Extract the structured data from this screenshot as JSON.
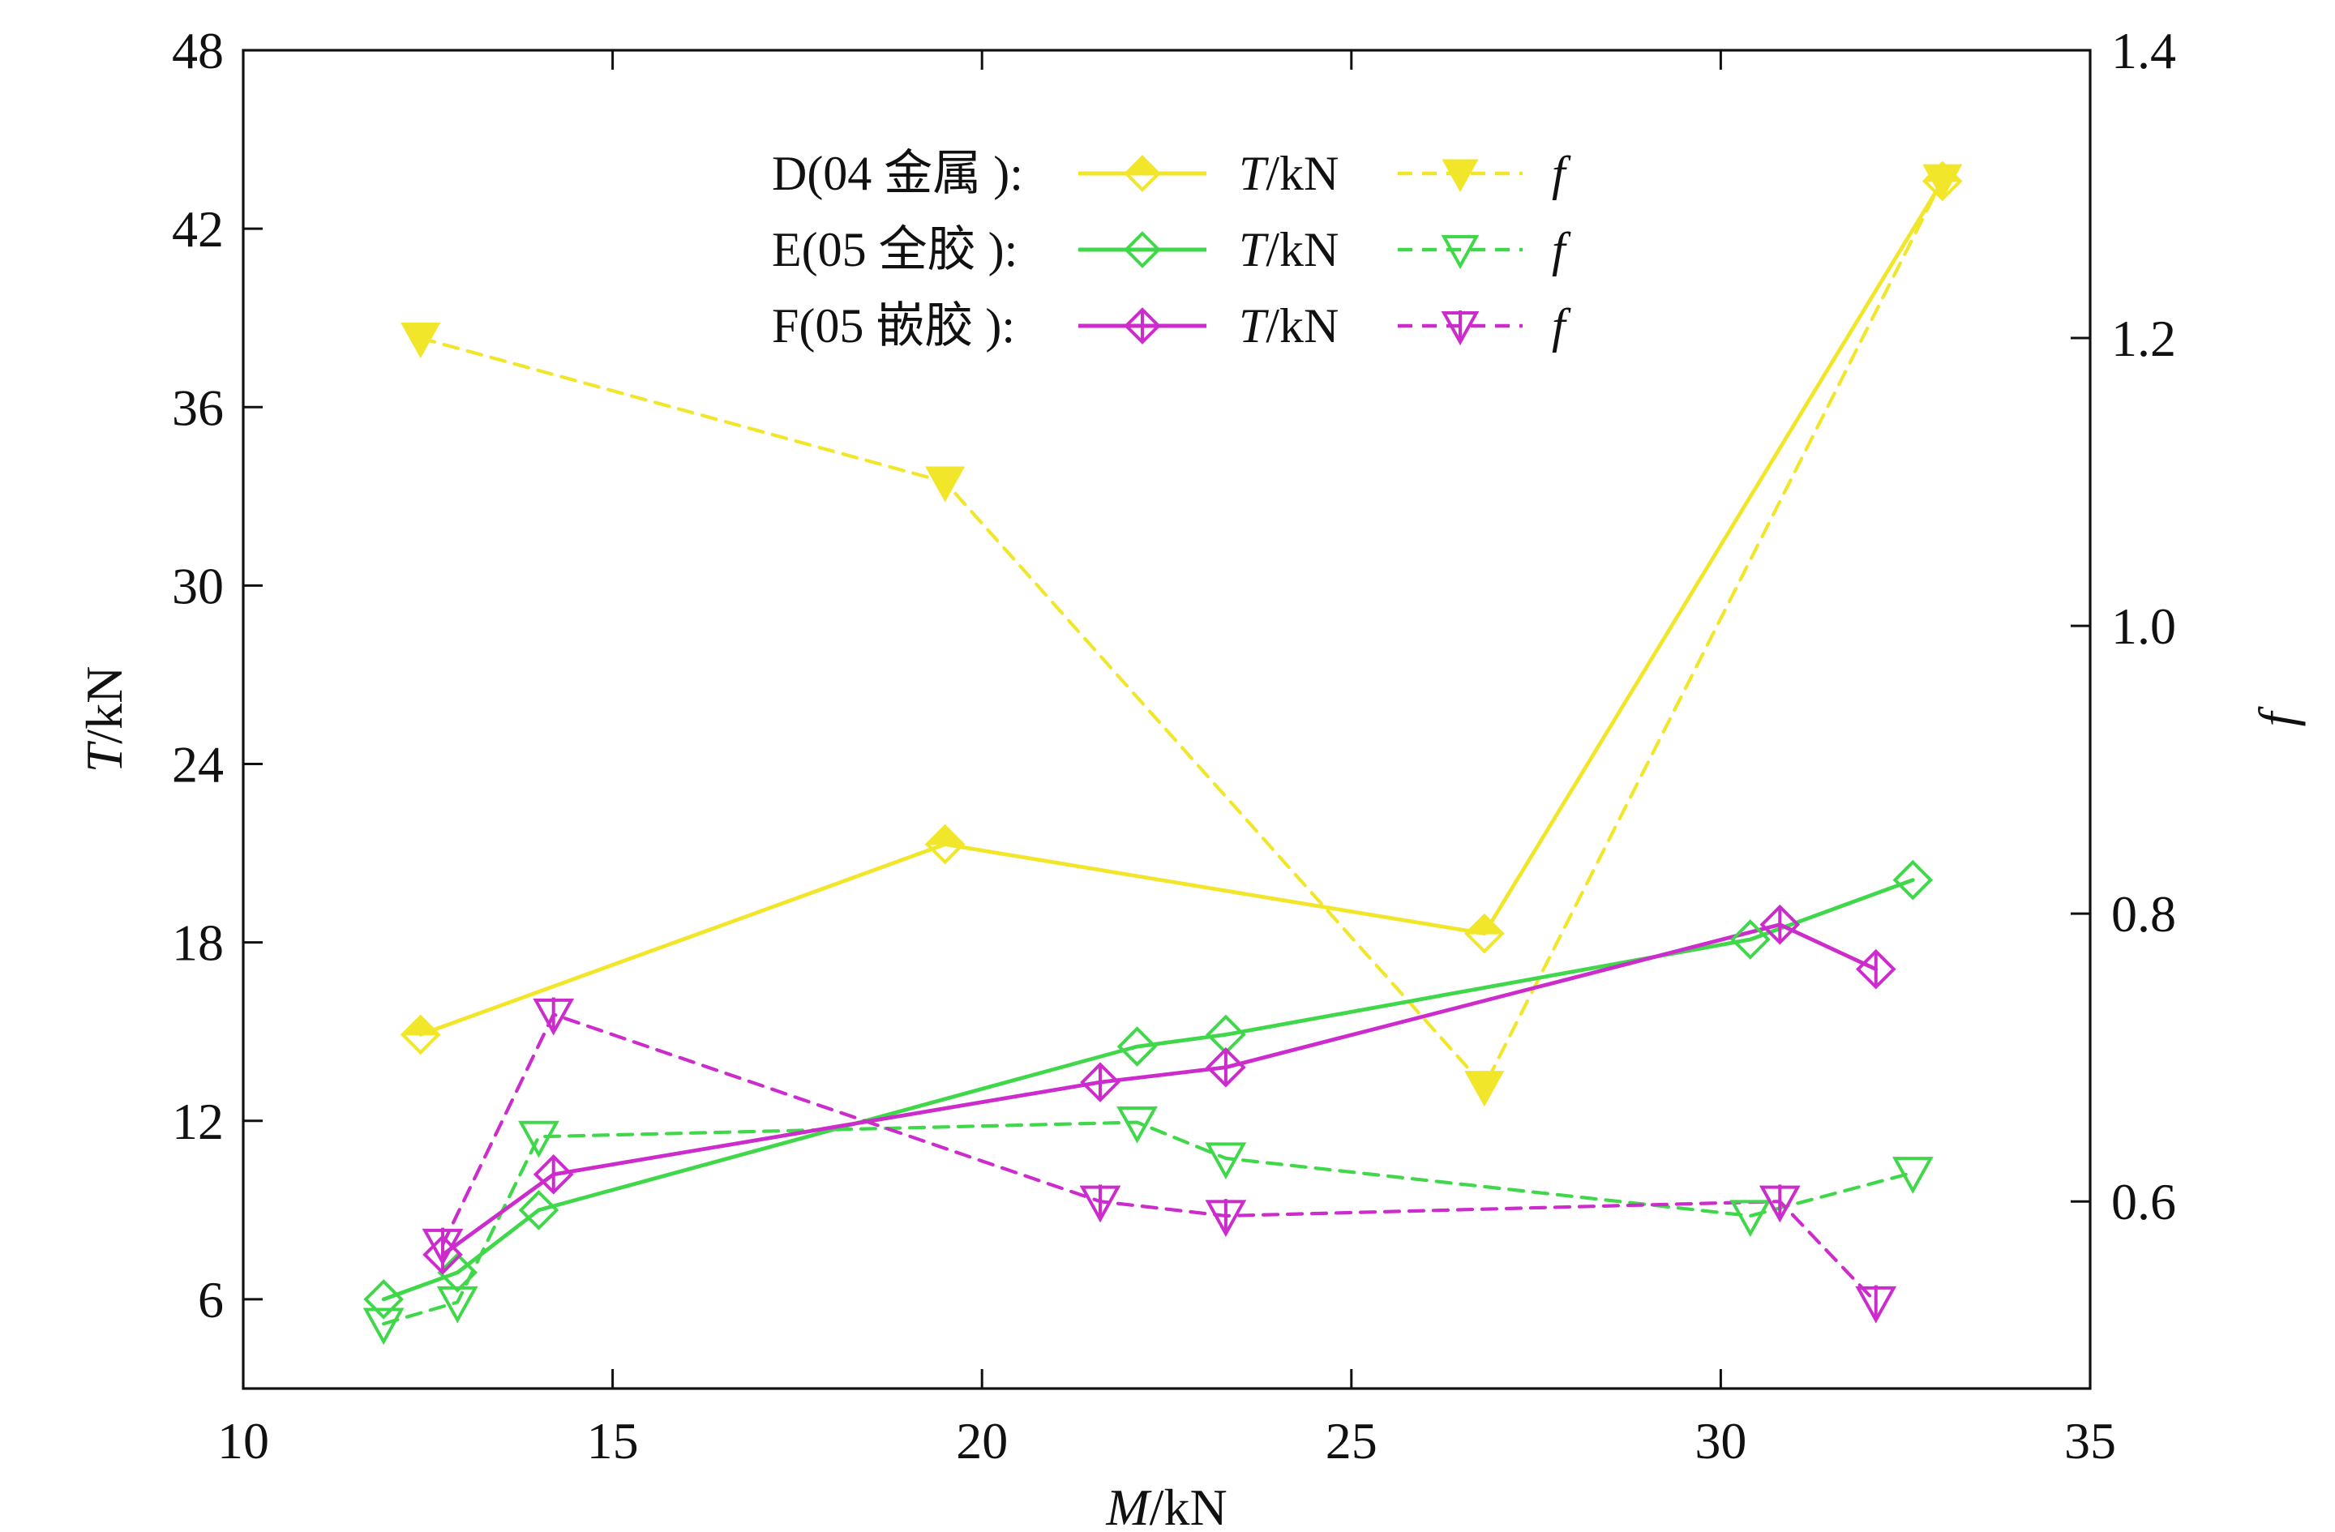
{
  "chart_data": {
    "type": "line",
    "x_label": {
      "italic": "M",
      "rest": "/kN"
    },
    "y_label_left": {
      "italic": "T",
      "rest": "/kN"
    },
    "y_label_right": {
      "italic": "f",
      "rest": ""
    },
    "xlim": [
      10,
      35
    ],
    "ylim_left": [
      3,
      48
    ],
    "ylim_right": [
      0.47,
      1.4
    ],
    "x_ticks": [
      "10",
      "15",
      "20",
      "25",
      "30",
      "35"
    ],
    "y_ticks_left": [
      "6",
      "12",
      "18",
      "24",
      "30",
      "36",
      "42",
      "48"
    ],
    "y_ticks_right": [
      "0.6",
      "0.8",
      "1.0",
      "1.2",
      "1.4"
    ],
    "legend_rows": [
      {
        "label": "D(04 金属 ):",
        "t_unit": "T/kN",
        "f_label": "f",
        "color": "#f2e62b"
      },
      {
        "label": "E(05 全胶 ):",
        "t_unit": "T/kN",
        "f_label": "f",
        "color": "#40d84a"
      },
      {
        "label": "F(05 嵌胶 ):",
        "t_unit": "T/kN",
        "f_label": "f",
        "color": "#cc2ccc"
      }
    ],
    "series": [
      {
        "name": "D(04 金属 ) T/kN",
        "axis": "left",
        "group": "D",
        "style": "solid",
        "marker": "diamond-half",
        "color": "#f2e62b",
        "x": [
          12.4,
          19.5,
          26.8,
          33.0
        ],
        "y": [
          14.9,
          21.3,
          18.3,
          43.6
        ]
      },
      {
        "name": "D(04 金属 ) f",
        "axis": "right",
        "group": "D",
        "style": "dashed",
        "marker": "triangle-down-filled",
        "color": "#f2e62b",
        "x": [
          12.4,
          19.5,
          26.8,
          33.0
        ],
        "y": [
          1.2,
          1.1,
          0.68,
          1.31
        ]
      },
      {
        "name": "E(05 全胶 ) T/kN",
        "axis": "left",
        "group": "E",
        "style": "solid",
        "marker": "diamond-open",
        "color": "#40d84a",
        "x": [
          11.9,
          12.9,
          14.0,
          22.1,
          23.3,
          30.4,
          32.6
        ],
        "y": [
          6.0,
          6.9,
          9.0,
          14.5,
          14.9,
          18.1,
          20.1
        ]
      },
      {
        "name": "E(05 全胶 ) f",
        "axis": "right",
        "group": "E",
        "style": "dashed",
        "marker": "triangle-down-open",
        "color": "#40d84a",
        "x": [
          11.9,
          12.9,
          14.0,
          22.1,
          23.3,
          30.4,
          32.6
        ],
        "y": [
          0.515,
          0.53,
          0.645,
          0.655,
          0.63,
          0.59,
          0.62
        ]
      },
      {
        "name": "F(05 嵌胶 ) T/kN",
        "axis": "left",
        "group": "F",
        "style": "solid",
        "marker": "diamond-bar",
        "color": "#cc2ccc",
        "x": [
          12.7,
          14.2,
          21.6,
          23.3,
          30.8,
          32.1
        ],
        "y": [
          7.5,
          10.2,
          13.3,
          13.8,
          18.6,
          17.1
        ]
      },
      {
        "name": "F(05 嵌胶 ) f",
        "axis": "right",
        "group": "F",
        "style": "dashed",
        "marker": "triangle-down-bar",
        "color": "#cc2ccc",
        "x": [
          12.7,
          14.2,
          21.6,
          23.3,
          30.8,
          32.1
        ],
        "y": [
          0.57,
          0.73,
          0.6,
          0.59,
          0.6,
          0.53
        ]
      }
    ]
  }
}
